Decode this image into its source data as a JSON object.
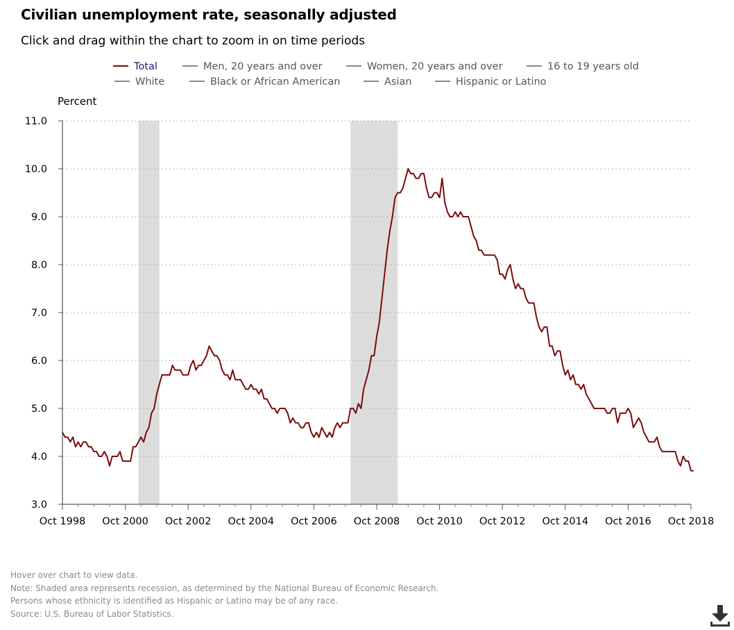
{
  "title": "Civilian unemployment rate, seasonally adjusted",
  "subtitle": "Click and drag within the chart to zoom in on time periods",
  "legend": [
    {
      "label": "Total",
      "color": "#7a0a0a",
      "active": true
    },
    {
      "label": "Men, 20 years and over",
      "color": "#888888",
      "active": false
    },
    {
      "label": "Women, 20 years and over",
      "color": "#888888",
      "active": false
    },
    {
      "label": "16 to 19 years old",
      "color": "#888888",
      "active": false
    },
    {
      "label": "White",
      "color": "#888888",
      "active": false
    },
    {
      "label": "Black or African American",
      "color": "#888888",
      "active": false
    },
    {
      "label": "Asian",
      "color": "#888888",
      "active": false
    },
    {
      "label": "Hispanic or Latino",
      "color": "#888888",
      "active": false
    }
  ],
  "notes": {
    "hover": "Hover over chart to view data.",
    "note": "Note: Shaded area represents recession, as determined by the National Bureau of Economic Research.",
    "ethnicity": "Persons whose ethnicity is identified as Hispanic or Latino may be of any race.",
    "source": "Source: U.S. Bureau of Labor Statistics."
  },
  "download_icon": "download-icon",
  "chart_data": {
    "type": "line",
    "ylabel": "Percent",
    "ylim": [
      3.0,
      11.0
    ],
    "yticks": [
      "3.0",
      "4.0",
      "5.0",
      "6.0",
      "7.0",
      "8.0",
      "9.0",
      "10.0",
      "11.0"
    ],
    "xticks": [
      "Oct 1998",
      "Oct 2000",
      "Oct 2002",
      "Oct 2004",
      "Oct 2006",
      "Oct 2008",
      "Oct 2010",
      "Oct 2012",
      "Oct 2014",
      "Oct 2016",
      "Oct 2018"
    ],
    "xlim": [
      "1998-10",
      "2018-10"
    ],
    "grid": "horizontal dotted",
    "legend_position": "top",
    "recessions": [
      {
        "start": "2001-03",
        "end": "2001-11"
      },
      {
        "start": "2007-12",
        "end": "2009-06"
      }
    ],
    "series": [
      {
        "name": "Total",
        "color": "#7a0a0a",
        "start": "1998-10",
        "frequency": "monthly",
        "values": [
          4.5,
          4.4,
          4.4,
          4.3,
          4.4,
          4.2,
          4.3,
          4.2,
          4.3,
          4.3,
          4.2,
          4.2,
          4.1,
          4.1,
          4.0,
          4.0,
          4.1,
          4.0,
          3.8,
          4.0,
          4.0,
          4.0,
          4.1,
          3.9,
          3.9,
          3.9,
          3.9,
          4.2,
          4.2,
          4.3,
          4.4,
          4.3,
          4.5,
          4.6,
          4.9,
          5.0,
          5.3,
          5.5,
          5.7,
          5.7,
          5.7,
          5.7,
          5.9,
          5.8,
          5.8,
          5.8,
          5.7,
          5.7,
          5.7,
          5.9,
          6.0,
          5.8,
          5.9,
          5.9,
          6.0,
          6.1,
          6.3,
          6.2,
          6.1,
          6.1,
          6.0,
          5.8,
          5.7,
          5.7,
          5.6,
          5.8,
          5.6,
          5.6,
          5.6,
          5.5,
          5.4,
          5.4,
          5.5,
          5.4,
          5.4,
          5.3,
          5.4,
          5.2,
          5.2,
          5.1,
          5.0,
          5.0,
          4.9,
          5.0,
          5.0,
          5.0,
          4.9,
          4.7,
          4.8,
          4.7,
          4.7,
          4.6,
          4.6,
          4.7,
          4.7,
          4.5,
          4.4,
          4.5,
          4.4,
          4.6,
          4.5,
          4.4,
          4.5,
          4.4,
          4.6,
          4.7,
          4.6,
          4.7,
          4.7,
          4.7,
          5.0,
          5.0,
          4.9,
          5.1,
          5.0,
          5.4,
          5.6,
          5.8,
          6.1,
          6.1,
          6.5,
          6.8,
          7.3,
          7.8,
          8.3,
          8.7,
          9.0,
          9.4,
          9.5,
          9.5,
          9.6,
          9.8,
          10.0,
          9.9,
          9.9,
          9.8,
          9.8,
          9.9,
          9.9,
          9.6,
          9.4,
          9.4,
          9.5,
          9.5,
          9.4,
          9.8,
          9.3,
          9.1,
          9.0,
          9.0,
          9.1,
          9.0,
          9.1,
          9.0,
          9.0,
          9.0,
          8.8,
          8.6,
          8.5,
          8.3,
          8.3,
          8.2,
          8.2,
          8.2,
          8.2,
          8.2,
          8.1,
          7.8,
          7.8,
          7.7,
          7.9,
          8.0,
          7.7,
          7.5,
          7.6,
          7.5,
          7.5,
          7.3,
          7.2,
          7.2,
          7.2,
          6.9,
          6.7,
          6.6,
          6.7,
          6.7,
          6.3,
          6.3,
          6.1,
          6.2,
          6.2,
          5.9,
          5.7,
          5.8,
          5.6,
          5.7,
          5.5,
          5.5,
          5.4,
          5.5,
          5.3,
          5.2,
          5.1,
          5.0,
          5.0,
          5.0,
          5.0,
          5.0,
          4.9,
          4.9,
          5.0,
          5.0,
          4.7,
          4.9,
          4.9,
          4.9,
          5.0,
          4.9,
          4.6,
          4.7,
          4.8,
          4.7,
          4.5,
          4.4,
          4.3,
          4.3,
          4.3,
          4.4,
          4.2,
          4.1,
          4.1,
          4.1,
          4.1,
          4.1,
          4.1,
          3.9,
          3.8,
          4.0,
          3.9,
          3.9,
          3.7,
          3.7
        ]
      }
    ]
  }
}
